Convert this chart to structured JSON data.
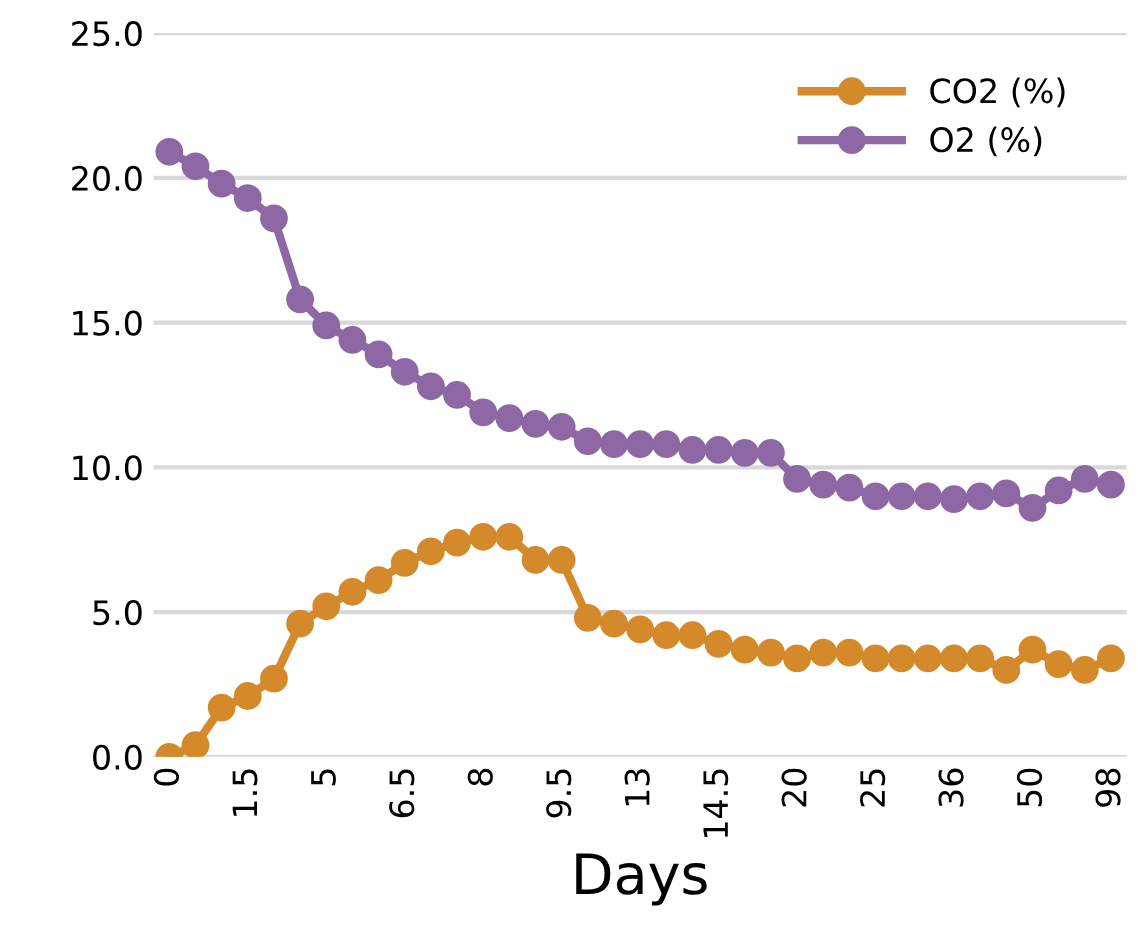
{
  "chart_data": {
    "type": "line",
    "xlabel": "Days",
    "categories": [
      "0",
      null,
      null,
      "1.5",
      null,
      null,
      "5",
      null,
      null,
      "6.5",
      null,
      null,
      "8",
      null,
      null,
      "9.5",
      null,
      null,
      "13",
      null,
      null,
      "14.5",
      null,
      null,
      "20",
      null,
      null,
      "25",
      null,
      null,
      "36",
      null,
      null,
      "50",
      null,
      null,
      "98"
    ],
    "series": [
      {
        "name": "CO2 (%)",
        "color": "#d4892b",
        "values": [
          0.0,
          0.4,
          1.7,
          2.1,
          2.7,
          4.6,
          5.2,
          5.7,
          6.1,
          6.7,
          7.1,
          7.4,
          7.6,
          7.6,
          6.8,
          6.8,
          4.8,
          4.6,
          4.4,
          4.2,
          4.2,
          3.9,
          3.7,
          3.6,
          3.4,
          3.6,
          3.6,
          3.4,
          3.4,
          3.4,
          3.4,
          3.4,
          3.0,
          3.7,
          3.2,
          3.0,
          3.4
        ]
      },
      {
        "name": "O2 (%)",
        "color": "#8e67a5",
        "values": [
          20.9,
          20.4,
          19.8,
          19.3,
          18.6,
          15.8,
          14.9,
          14.4,
          13.9,
          13.3,
          12.8,
          12.5,
          11.9,
          11.7,
          11.5,
          11.4,
          10.9,
          10.8,
          10.8,
          10.8,
          10.6,
          10.6,
          10.5,
          10.5,
          9.6,
          9.4,
          9.3,
          9.0,
          9.0,
          9.0,
          8.9,
          9.0,
          9.1,
          8.6,
          9.2,
          9.6,
          9.4
        ]
      }
    ],
    "ylim": [
      0,
      25
    ],
    "yticks": [
      {
        "value": 0,
        "label": "0.0"
      },
      {
        "value": 5,
        "label": "5.0"
      },
      {
        "value": 10,
        "label": "10.0"
      },
      {
        "value": 15,
        "label": "15.0"
      },
      {
        "value": 20,
        "label": "20.0"
      },
      {
        "value": 25,
        "label": "25.0"
      }
    ],
    "grid": "y",
    "legend": "top right",
    "marker": "circle",
    "line_style": "solid"
  }
}
